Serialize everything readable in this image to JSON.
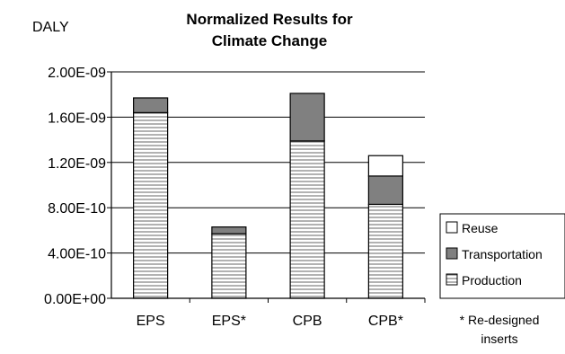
{
  "chart_data": {
    "type": "bar",
    "stacked": true,
    "title_lines": [
      "Normalized Results for",
      "Climate Change"
    ],
    "ylabel": "DALY",
    "ylim": [
      0,
      2e-09
    ],
    "yticks": [
      0,
      4e-10,
      8e-10,
      1.2e-09,
      1.6e-09,
      2e-09
    ],
    "ytick_labels": [
      "0.00E+00",
      "4.00E-10",
      "8.00E-10",
      "1.20E-09",
      "1.60E-09",
      "2.00E-09"
    ],
    "grid": true,
    "legend_position": "right",
    "categories": [
      "EPS",
      "EPS*",
      "CPB",
      "CPB*"
    ],
    "series": [
      {
        "name": "Production",
        "values": [
          1.64e-09,
          5.7e-10,
          1.39e-09,
          8.3e-10
        ],
        "fill": "hatch",
        "color": "#ffffff"
      },
      {
        "name": "Transportation",
        "values": [
          1.3e-10,
          6e-11,
          4.2e-10,
          2.5e-10
        ],
        "fill": "solid",
        "color": "#808080"
      },
      {
        "name": "Reuse",
        "values": [
          0,
          0,
          0,
          1.8e-10
        ],
        "fill": "solid",
        "color": "#ffffff"
      }
    ],
    "legend_order": [
      "Reuse",
      "Transportation",
      "Production"
    ],
    "footnote_lines": [
      "* Re-designed",
      "inserts"
    ]
  }
}
